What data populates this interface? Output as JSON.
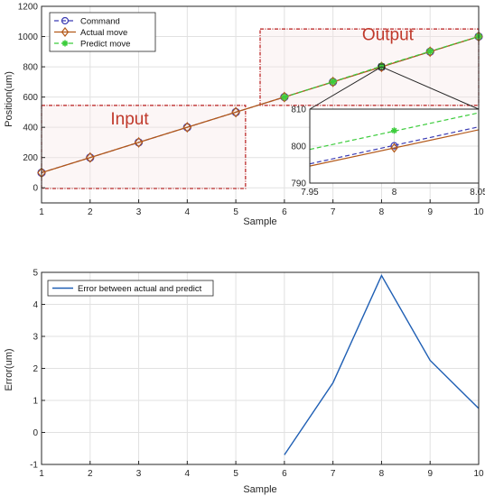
{
  "colors": {
    "command": "#3b3bb3",
    "actual": "#b3591a",
    "predict": "#3ccc3c",
    "error": "#1f5fb4",
    "box": "#b81c1c",
    "box_fill": "#f7e4e4",
    "box_text": "#c0392b",
    "grid": "#e1e1e1",
    "axis": "#262626"
  },
  "chart_data": [
    {
      "type": "line",
      "xlabel": "Sample",
      "ylabel": "Position(um)",
      "xlim": [
        1,
        10
      ],
      "ylim": [
        -100,
        1200
      ],
      "x_ticks": [
        "1",
        "2",
        "3",
        "4",
        "5",
        "6",
        "7",
        "8",
        "9",
        "10"
      ],
      "y_ticks": [
        "0",
        "200",
        "400",
        "600",
        "800",
        "1000",
        "1200"
      ],
      "grid": true,
      "legend_position": "top-left",
      "series": [
        {
          "name": "Command",
          "key": "command",
          "line_style": "dashed",
          "marker": "circle",
          "x": [
            1,
            2,
            3,
            4,
            5,
            6,
            7,
            8,
            9,
            10
          ],
          "values": [
            100,
            200,
            300,
            400,
            500,
            600,
            700,
            800,
            900,
            1000
          ]
        },
        {
          "name": "Actual move",
          "key": "actual",
          "line_style": "solid",
          "marker": "diamond",
          "x": [
            1,
            2,
            3,
            4,
            5,
            6,
            7,
            8,
            9,
            10
          ],
          "values": [
            100,
            200,
            300,
            400,
            500,
            600,
            700,
            799.5,
            900,
            1000
          ]
        },
        {
          "name": "Predict move",
          "key": "predict",
          "line_style": "dashed",
          "marker": "star",
          "x": [
            6,
            7,
            8,
            9,
            10
          ],
          "values": [
            599.3,
            701.5,
            804.2,
            902.2,
            1000.7
          ]
        }
      ],
      "annotations": [
        {
          "label": "Input",
          "x_range": [
            1,
            5.2
          ],
          "y_range": [
            -5,
            545
          ]
        },
        {
          "label": "Output",
          "x_range": [
            5.5,
            10
          ],
          "y_range": [
            545,
            1050
          ]
        }
      ],
      "inset": {
        "xlim": [
          7.95,
          8.05
        ],
        "ylim": [
          790,
          810
        ],
        "x_ticks": [
          "7.95",
          "8",
          "8.05"
        ],
        "y_ticks": [
          "790",
          "800",
          "810"
        ],
        "zoom_point": {
          "x": 8,
          "y": 800
        },
        "series": [
          {
            "key": "command",
            "line_style": "dashed",
            "x": [
              7.95,
              8.05
            ],
            "values": [
              795.2,
              805.2
            ],
            "marker_at": {
              "x": 8,
              "y": 800.1,
              "marker": "circle"
            }
          },
          {
            "key": "actual",
            "line_style": "solid",
            "x": [
              7.95,
              8.05
            ],
            "values": [
              794.6,
              804.4
            ],
            "marker_at": {
              "x": 8,
              "y": 799.5,
              "marker": "diamond"
            }
          },
          {
            "key": "predict",
            "line_style": "dashed",
            "x": [
              7.95,
              8.05
            ],
            "values": [
              799.1,
              809.0
            ],
            "marker_at": {
              "x": 8,
              "y": 804.2,
              "marker": "star"
            }
          }
        ]
      }
    },
    {
      "type": "line",
      "xlabel": "Sample",
      "ylabel": "Error(um)",
      "xlim": [
        1,
        10
      ],
      "ylim": [
        -1,
        5
      ],
      "x_ticks": [
        "1",
        "2",
        "3",
        "4",
        "5",
        "6",
        "7",
        "8",
        "9",
        "10"
      ],
      "y_ticks": [
        "-1",
        "0",
        "1",
        "2",
        "3",
        "4",
        "5"
      ],
      "grid": true,
      "legend_position": "top-left",
      "series": [
        {
          "name": "Error between actual and predict",
          "key": "error",
          "line_style": "solid",
          "x": [
            6,
            7,
            8,
            9,
            10
          ],
          "values": [
            -0.7,
            1.55,
            4.9,
            2.25,
            0.75
          ]
        }
      ]
    }
  ]
}
